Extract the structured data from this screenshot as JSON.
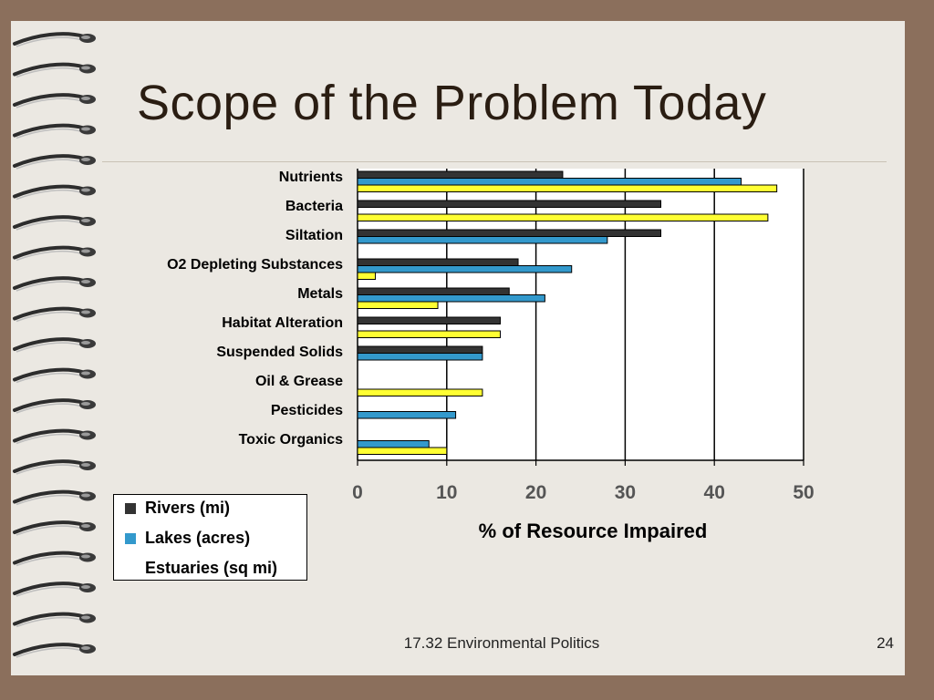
{
  "slide": {
    "title": "Scope of the Problem Today",
    "footer": "17.32 Environmental Politics",
    "page_number": "24",
    "colors": {
      "background": "#8b6f5c",
      "paper": "#ebe8e2"
    }
  },
  "chart_data": {
    "type": "bar",
    "orientation": "horizontal",
    "categories": [
      "Nutrients",
      "Bacteria",
      "Siltation",
      "O2 Depleting Substances",
      "Metals",
      "Habitat Alteration",
      "Suspended Solids",
      "Oil & Grease",
      "Pesticides",
      "Toxic Organics"
    ],
    "series": [
      {
        "name": "Rivers (mi)",
        "color": "#333333",
        "values": [
          23,
          34,
          34,
          18,
          17,
          16,
          14,
          null,
          null,
          null
        ]
      },
      {
        "name": "Lakes (acres)",
        "color": "#3399cc",
        "values": [
          43,
          null,
          28,
          24,
          21,
          null,
          14,
          null,
          11,
          8
        ]
      },
      {
        "name": "Estuaries (sq mi)",
        "color": "#ffff33",
        "values": [
          47,
          46,
          null,
          2,
          9,
          16,
          null,
          14,
          null,
          10
        ]
      }
    ],
    "xlabel": "% of Resource Impaired",
    "xlim": [
      0,
      50
    ],
    "xticks": [
      0,
      10,
      20,
      30,
      40,
      50
    ],
    "grid": "vertical",
    "legend_position": "bottom-left"
  }
}
